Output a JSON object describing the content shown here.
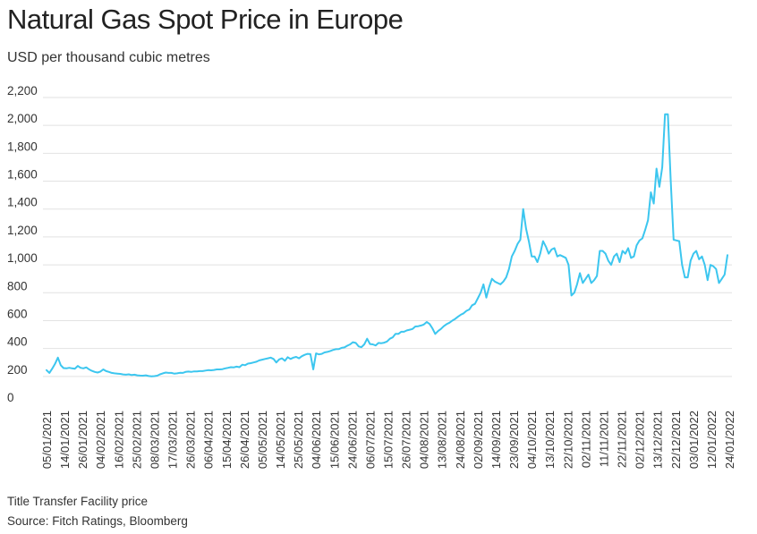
{
  "title": "Natural Gas Spot Price in Europe",
  "subtitle": "USD per thousand cubic metres",
  "note": "Title Transfer Facility price",
  "source": "Source: Fitch Ratings, Bloomberg",
  "colors": {
    "line": "#3cc6ef",
    "grid": "#e2e2e2"
  },
  "chart_data": {
    "type": "line",
    "title": "Natural Gas Spot Price in Europe",
    "ylabel": "USD per thousand cubic metres",
    "xlabel": "",
    "ylim": [
      0,
      2200
    ],
    "yticks": [
      0,
      200,
      400,
      600,
      800,
      1000,
      1200,
      1400,
      1600,
      1800,
      2000,
      2200
    ],
    "ytick_labels": [
      "0",
      "200",
      "400",
      "600",
      "800",
      "1,000",
      "1,200",
      "1,400",
      "1,600",
      "1,800",
      "2,000",
      "2,200"
    ],
    "grid": true,
    "x_tick_labels": [
      "05/01/2021",
      "14/01/2021",
      "26/01/2021",
      "04/02/2021",
      "16/02/2021",
      "25/02/2021",
      "08/03/2021",
      "17/03/2021",
      "26/03/2021",
      "06/04/2021",
      "15/04/2021",
      "26/04/2021",
      "05/05/2021",
      "14/05/2021",
      "25/05/2021",
      "04/06/2021",
      "15/06/2021",
      "24/06/2021",
      "06/07/2021",
      "15/07/2021",
      "26/07/2021",
      "04/08/2021",
      "13/08/2021",
      "24/08/2021",
      "02/09/2021",
      "14/09/2021",
      "23/09/2021",
      "04/10/2021",
      "13/10/2021",
      "22/10/2021",
      "02/11/2021",
      "11/11/2021",
      "22/11/2021",
      "02/12/2021",
      "13/12/2021",
      "22/12/2021",
      "03/01/2022",
      "12/01/2022",
      "24/01/2022"
    ],
    "series": [
      {
        "values": [
          245,
          225,
          255,
          290,
          335,
          280,
          260,
          258,
          262,
          258,
          255,
          275,
          262,
          258,
          265,
          250,
          240,
          232,
          228,
          235,
          250,
          238,
          232,
          225,
          222,
          220,
          218,
          214,
          212,
          215,
          210,
          212,
          208,
          206,
          205,
          208,
          203,
          200,
          202,
          205,
          215,
          222,
          228,
          225,
          225,
          220,
          222,
          226,
          225,
          232,
          235,
          232,
          236,
          236,
          238,
          238,
          242,
          245,
          244,
          246,
          250,
          250,
          252,
          258,
          262,
          266,
          265,
          270,
          266,
          284,
          280,
          292,
          295,
          300,
          305,
          315,
          320,
          325,
          330,
          335,
          325,
          300,
          322,
          330,
          312,
          338,
          325,
          335,
          340,
          330,
          345,
          355,
          362,
          360,
          250,
          365,
          358,
          362,
          372,
          376,
          382,
          390,
          395,
          396,
          405,
          408,
          420,
          430,
          445,
          440,
          415,
          410,
          430,
          470,
          432,
          430,
          422,
          440,
          438,
          442,
          450,
          470,
          480,
          505,
          505,
          520,
          520,
          530,
          535,
          540,
          558,
          560,
          565,
          572,
          590,
          576,
          545,
          505,
          525,
          540,
          560,
          575,
          585,
          600,
          612,
          628,
          642,
          652,
          670,
          680,
          710,
          720,
          760,
          800,
          860,
          765,
          840,
          900,
          880,
          870,
          860,
          880,
          910,
          970,
          1060,
          1100,
          1150,
          1180,
          1400,
          1260,
          1170,
          1060,
          1060,
          1020,
          1080,
          1170,
          1130,
          1080,
          1110,
          1120,
          1060,
          1070,
          1060,
          1050,
          1000,
          780,
          800,
          860,
          940,
          870,
          900,
          930,
          870,
          890,
          920,
          1100,
          1100,
          1080,
          1030,
          1000,
          1060,
          1080,
          1020,
          1100,
          1080,
          1120,
          1050,
          1060,
          1140,
          1175,
          1190,
          1250,
          1320,
          1520,
          1440,
          1690,
          1560,
          1700,
          2080,
          2080,
          1600,
          1180,
          1175,
          1170,
          1000,
          910,
          910,
          1030,
          1080,
          1100,
          1040,
          1060,
          1000,
          890,
          1000,
          990,
          970,
          870,
          900,
          930,
          1070
        ]
      }
    ]
  }
}
